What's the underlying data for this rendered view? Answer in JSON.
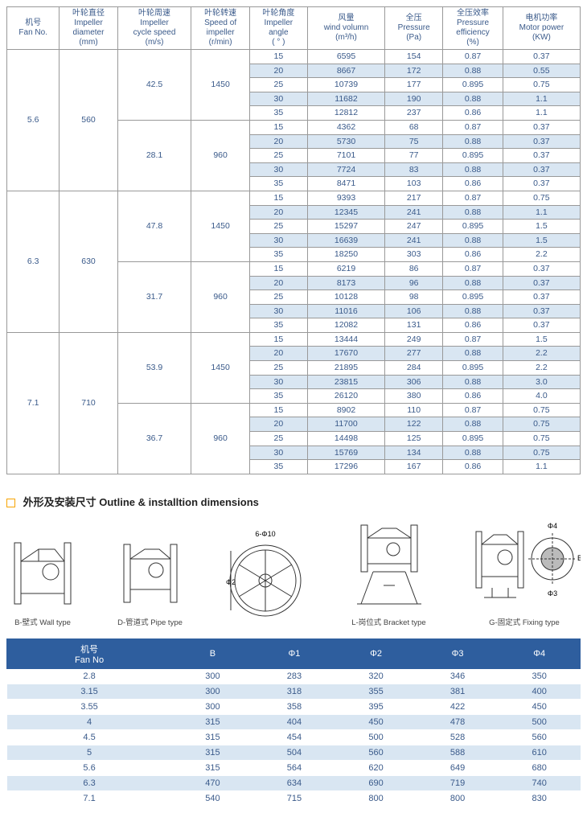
{
  "table1": {
    "headers": [
      "机号\nFan No.",
      "叶轮直径\nImpeller\ndiameter\n(mm)",
      "叶轮周速\nImpeller\ncycle speed\n(m/s)",
      "叶轮转速\nSpeed of\nimpeller\n(r/min)",
      "叶轮角度\nImpeller\nangle\n( ° )",
      "风量\nwind volumn\n(m³/h)",
      "全压\nPressure\n(Pa)",
      "全压效率\nPressure\nefficiency\n(%)",
      "电机功率\nMotor power\n(KW)"
    ],
    "groups": [
      {
        "fanNo": "5.6",
        "dia": "560",
        "subs": [
          {
            "cs": "42.5",
            "rpm": "1450",
            "rows": [
              [
                "15",
                "6595",
                "154",
                "0.87",
                "0.37"
              ],
              [
                "20",
                "8667",
                "172",
                "0.88",
                "0.55"
              ],
              [
                "25",
                "10739",
                "177",
                "0.895",
                "0.75"
              ],
              [
                "30",
                "11682",
                "190",
                "0.88",
                "1.1"
              ],
              [
                "35",
                "12812",
                "237",
                "0.86",
                "1.1"
              ]
            ]
          },
          {
            "cs": "28.1",
            "rpm": "960",
            "rows": [
              [
                "15",
                "4362",
                "68",
                "0.87",
                "0.37"
              ],
              [
                "20",
                "5730",
                "75",
                "0.88",
                "0.37"
              ],
              [
                "25",
                "7101",
                "77",
                "0.895",
                "0.37"
              ],
              [
                "30",
                "7724",
                "83",
                "0.88",
                "0.37"
              ],
              [
                "35",
                "8471",
                "103",
                "0.86",
                "0.37"
              ]
            ]
          }
        ]
      },
      {
        "fanNo": "6.3",
        "dia": "630",
        "subs": [
          {
            "cs": "47.8",
            "rpm": "1450",
            "rows": [
              [
                "15",
                "9393",
                "217",
                "0.87",
                "0.75"
              ],
              [
                "20",
                "12345",
                "241",
                "0.88",
                "1.1"
              ],
              [
                "25",
                "15297",
                "247",
                "0.895",
                "1.5"
              ],
              [
                "30",
                "16639",
                "241",
                "0.88",
                "1.5"
              ],
              [
                "35",
                "18250",
                "303",
                "0.86",
                "2.2"
              ]
            ]
          },
          {
            "cs": "31.7",
            "rpm": "960",
            "rows": [
              [
                "15",
                "6219",
                "86",
                "0.87",
                "0.37"
              ],
              [
                "20",
                "8173",
                "96",
                "0.88",
                "0.37"
              ],
              [
                "25",
                "10128",
                "98",
                "0.895",
                "0.37"
              ],
              [
                "30",
                "11016",
                "106",
                "0.88",
                "0.37"
              ],
              [
                "35",
                "12082",
                "131",
                "0.86",
                "0.37"
              ]
            ]
          }
        ]
      },
      {
        "fanNo": "7.1",
        "dia": "710",
        "subs": [
          {
            "cs": "53.9",
            "rpm": "1450",
            "rows": [
              [
                "15",
                "13444",
                "249",
                "0.87",
                "1.5"
              ],
              [
                "20",
                "17670",
                "277",
                "0.88",
                "2.2"
              ],
              [
                "25",
                "21895",
                "284",
                "0.895",
                "2.2"
              ],
              [
                "30",
                "23815",
                "306",
                "0.88",
                "3.0"
              ],
              [
                "35",
                "26120",
                "380",
                "0.86",
                "4.0"
              ]
            ]
          },
          {
            "cs": "36.7",
            "rpm": "960",
            "rows": [
              [
                "15",
                "8902",
                "110",
                "0.87",
                "0.75"
              ],
              [
                "20",
                "11700",
                "122",
                "0.88",
                "0.75"
              ],
              [
                "25",
                "14498",
                "125",
                "0.895",
                "0.75"
              ],
              [
                "30",
                "15769",
                "134",
                "0.88",
                "0.75"
              ],
              [
                "35",
                "17296",
                "167",
                "0.86",
                "1.1"
              ]
            ]
          }
        ]
      }
    ]
  },
  "sectionTitle": "外形及安装尺寸 Outline & installtion dimensions",
  "diagCaptions": {
    "wall": "B-壁式 Wall type",
    "pipe": "D-管道式 Pipe type",
    "bracket": "L-岗位式 Bracket type",
    "fixing": "G-固定式 Fixing type"
  },
  "dimLabels": {
    "d10": "6-Φ10",
    "d2": "Φ2",
    "d4": "Φ4",
    "d3": "Φ3",
    "b": "B"
  },
  "table2": {
    "headers": [
      "机号\nFan No",
      "B",
      "Φ1",
      "Φ2",
      "Φ3",
      "Φ4"
    ],
    "rows": [
      [
        "2.8",
        "300",
        "283",
        "320",
        "346",
        "350"
      ],
      [
        "3.15",
        "300",
        "318",
        "355",
        "381",
        "400"
      ],
      [
        "3.55",
        "300",
        "358",
        "395",
        "422",
        "450"
      ],
      [
        "4",
        "315",
        "404",
        "450",
        "478",
        "500"
      ],
      [
        "4.5",
        "315",
        "454",
        "500",
        "528",
        "560"
      ],
      [
        "5",
        "315",
        "504",
        "560",
        "588",
        "610"
      ],
      [
        "5.6",
        "315",
        "564",
        "620",
        "649",
        "680"
      ],
      [
        "6.3",
        "470",
        "634",
        "690",
        "719",
        "740"
      ],
      [
        "7.1",
        "540",
        "715",
        "800",
        "800",
        "830"
      ]
    ]
  },
  "colors": {
    "headerBlue": "#2e5e9e",
    "stripe": "#d9e6f2",
    "text": "#3a5a8a",
    "border": "#999",
    "accent": "#f7a400"
  }
}
